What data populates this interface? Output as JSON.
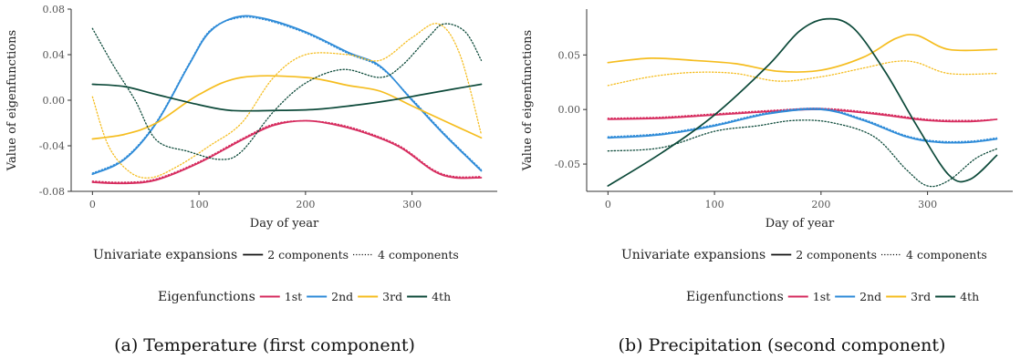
{
  "legend": {
    "linetype_title": "Univariate expansions",
    "linetype_items": [
      "2 components",
      "4 components"
    ],
    "color_title": "Eigenfunctions",
    "color_items": [
      "1st",
      "2nd",
      "3rd",
      "4th"
    ]
  },
  "colors": {
    "1st": "#d62b5e",
    "2nd": "#2e8bd8",
    "3rd": "#f5bd1f",
    "4th": "#0d4a3a"
  },
  "chart_data": [
    {
      "type": "line",
      "caption": "(a) Temperature (first component)",
      "xlabel": "Day of year",
      "ylabel": "Value of eigenfunctions",
      "xlim": [
        -20,
        380
      ],
      "ylim": [
        -0.08,
        0.08
      ],
      "xticks": [
        0,
        100,
        200,
        300
      ],
      "yticks": [
        -0.08,
        -0.04,
        0.0,
        0.04,
        0.08
      ],
      "ytick_labels": [
        "-0.08",
        "-0.04",
        "0.00",
        "0.04",
        "0.08"
      ],
      "grid": false,
      "legend_position": "bottom",
      "series": [
        {
          "name": "1st",
          "components": "2 components",
          "x": [
            0,
            30,
            60,
            100,
            140,
            170,
            200,
            230,
            260,
            290,
            320,
            340,
            365
          ],
          "y": [
            -0.072,
            -0.073,
            -0.07,
            -0.055,
            -0.035,
            -0.022,
            -0.018,
            -0.022,
            -0.03,
            -0.042,
            -0.062,
            -0.068,
            -0.068
          ]
        },
        {
          "name": "1st",
          "components": "4 components",
          "x": [
            0,
            30,
            60,
            100,
            140,
            170,
            200,
            230,
            260,
            290,
            320,
            340,
            365
          ],
          "y": [
            -0.071,
            -0.072,
            -0.069,
            -0.054,
            -0.034,
            -0.021,
            -0.018,
            -0.021,
            -0.029,
            -0.041,
            -0.061,
            -0.067,
            -0.067
          ]
        },
        {
          "name": "2nd",
          "components": "2 components",
          "x": [
            0,
            30,
            60,
            90,
            110,
            135,
            160,
            200,
            240,
            270,
            300,
            330,
            365
          ],
          "y": [
            -0.065,
            -0.052,
            -0.02,
            0.03,
            0.06,
            0.073,
            0.072,
            0.06,
            0.042,
            0.03,
            0.0,
            -0.03,
            -0.062
          ]
        },
        {
          "name": "2nd",
          "components": "4 components",
          "x": [
            0,
            30,
            60,
            90,
            110,
            135,
            160,
            200,
            240,
            270,
            300,
            330,
            365
          ],
          "y": [
            -0.064,
            -0.051,
            -0.019,
            0.031,
            0.061,
            0.072,
            0.071,
            0.059,
            0.041,
            0.029,
            0.001,
            -0.029,
            -0.061
          ]
        },
        {
          "name": "3rd",
          "components": "2 components",
          "x": [
            0,
            30,
            60,
            100,
            140,
            200,
            240,
            270,
            300,
            330,
            365
          ],
          "y": [
            -0.034,
            -0.03,
            -0.02,
            0.005,
            0.02,
            0.02,
            0.013,
            0.008,
            -0.005,
            -0.018,
            -0.033
          ]
        },
        {
          "name": "3rd",
          "components": "4 components",
          "x": [
            0,
            15,
            35,
            55,
            80,
            110,
            140,
            170,
            200,
            240,
            270,
            300,
            325,
            345,
            365
          ],
          "y": [
            0.003,
            -0.04,
            -0.063,
            -0.068,
            -0.058,
            -0.04,
            -0.02,
            0.02,
            0.04,
            0.04,
            0.035,
            0.055,
            0.067,
            0.04,
            -0.03
          ]
        },
        {
          "name": "4th",
          "components": "2 components",
          "x": [
            0,
            30,
            60,
            100,
            130,
            170,
            210,
            250,
            280,
            310,
            340,
            365
          ],
          "y": [
            0.014,
            0.012,
            0.005,
            -0.004,
            -0.009,
            -0.009,
            -0.008,
            -0.004,
            0.0,
            0.005,
            0.01,
            0.014
          ]
        },
        {
          "name": "4th",
          "components": "4 components",
          "x": [
            0,
            20,
            40,
            60,
            90,
            120,
            140,
            170,
            200,
            235,
            270,
            290,
            315,
            330,
            350,
            365
          ],
          "y": [
            0.063,
            0.03,
            0.0,
            -0.035,
            -0.045,
            -0.052,
            -0.045,
            -0.01,
            0.015,
            0.027,
            0.02,
            0.03,
            0.055,
            0.067,
            0.06,
            0.035
          ]
        }
      ]
    },
    {
      "type": "line",
      "caption": "(b) Precipitation (second component)",
      "xlabel": "Day of year",
      "ylabel": "Value of eigenfunctions",
      "xlim": [
        -20,
        380
      ],
      "ylim": [
        -0.075,
        0.092
      ],
      "xticks": [
        0,
        100,
        200,
        300
      ],
      "yticks": [
        -0.05,
        0.0,
        0.05
      ],
      "ytick_labels": [
        "-0.05",
        "0.00",
        "0.05"
      ],
      "grid": false,
      "legend_position": "bottom",
      "series": [
        {
          "name": "1st",
          "components": "2 components",
          "x": [
            0,
            50,
            100,
            150,
            200,
            250,
            300,
            340,
            365
          ],
          "y": [
            -0.009,
            -0.008,
            -0.005,
            -0.002,
            0.0,
            -0.004,
            -0.01,
            -0.011,
            -0.009
          ]
        },
        {
          "name": "1st",
          "components": "4 components",
          "x": [
            0,
            50,
            100,
            150,
            200,
            250,
            300,
            340,
            365
          ],
          "y": [
            -0.008,
            -0.007,
            -0.004,
            -0.001,
            0.001,
            -0.003,
            -0.009,
            -0.01,
            -0.009
          ]
        },
        {
          "name": "2nd",
          "components": "2 components",
          "x": [
            0,
            50,
            100,
            150,
            200,
            240,
            280,
            310,
            340,
            365
          ],
          "y": [
            -0.026,
            -0.023,
            -0.015,
            -0.004,
            0.0,
            -0.01,
            -0.025,
            -0.03,
            -0.03,
            -0.027
          ]
        },
        {
          "name": "2nd",
          "components": "4 components",
          "x": [
            0,
            50,
            100,
            150,
            200,
            240,
            280,
            310,
            340,
            365
          ],
          "y": [
            -0.025,
            -0.022,
            -0.014,
            -0.003,
            0.001,
            -0.009,
            -0.024,
            -0.029,
            -0.029,
            -0.026
          ]
        },
        {
          "name": "3rd",
          "components": "2 components",
          "x": [
            0,
            40,
            80,
            120,
            160,
            200,
            240,
            270,
            290,
            320,
            365
          ],
          "y": [
            0.043,
            0.047,
            0.045,
            0.042,
            0.035,
            0.036,
            0.048,
            0.065,
            0.068,
            0.055,
            0.055
          ]
        },
        {
          "name": "3rd",
          "components": "4 components",
          "x": [
            0,
            40,
            80,
            120,
            160,
            200,
            240,
            270,
            290,
            320,
            365
          ],
          "y": [
            0.022,
            0.03,
            0.034,
            0.033,
            0.026,
            0.03,
            0.038,
            0.044,
            0.043,
            0.033,
            0.033
          ]
        },
        {
          "name": "4th",
          "components": "2 components",
          "x": [
            0,
            50,
            100,
            150,
            180,
            205,
            230,
            260,
            290,
            320,
            340,
            365
          ],
          "y": [
            -0.07,
            -0.04,
            -0.005,
            0.04,
            0.072,
            0.083,
            0.075,
            0.035,
            -0.015,
            -0.06,
            -0.064,
            -0.042
          ]
        },
        {
          "name": "4th",
          "components": "4 components",
          "x": [
            0,
            50,
            100,
            140,
            175,
            210,
            250,
            280,
            300,
            320,
            345,
            365
          ],
          "y": [
            -0.038,
            -0.035,
            -0.02,
            -0.015,
            -0.01,
            -0.012,
            -0.025,
            -0.055,
            -0.07,
            -0.065,
            -0.045,
            -0.036
          ]
        }
      ]
    }
  ]
}
